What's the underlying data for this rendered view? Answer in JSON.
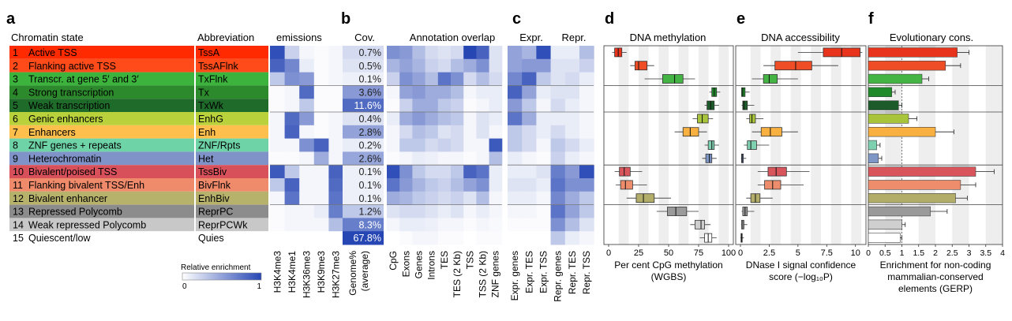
{
  "panel_letters": [
    "a",
    "b",
    "c",
    "d",
    "e",
    "f"
  ],
  "headers": {
    "chromatin_state": "Chromatin state",
    "abbreviation": "Abbreviation",
    "emissions": "emissions",
    "cov": "Cov.",
    "annotation_overlap": "Annotation overlap",
    "expr": "Expr.",
    "repr": "Repr.",
    "dna_methylation": "DNA methylation",
    "dna_accessibility": "DNA accessibility",
    "evolutionary_cons": "Evolutionary cons."
  },
  "states": [
    {
      "num": "1",
      "name": "Active TSS",
      "abbr": "TssA",
      "color": "#ff2a00",
      "box_color": "#e8341c"
    },
    {
      "num": "2",
      "name": "Flanking active TSS",
      "abbr": "TssAFlnk",
      "color": "#ff4b1a",
      "box_color": "#ee4d26"
    },
    {
      "num": "3",
      "name": "Transcr. at gene 5′ and 3′",
      "abbr": "TxFlnk",
      "color": "#3cb33c",
      "box_color": "#44b544"
    },
    {
      "num": "4",
      "name": "Strong transcription",
      "abbr": "Tx",
      "color": "#2c8a2c",
      "box_color": "#1f8a2a"
    },
    {
      "num": "5",
      "name": "Weak transcription",
      "abbr": "TxWk",
      "color": "#1f6b2a",
      "box_color": "#1d5c2a"
    },
    {
      "num": "6",
      "name": "Genic enhancers",
      "abbr": "EnhG",
      "color": "#b9d23c",
      "box_color": "#a8c43a"
    },
    {
      "num": "7",
      "name": "Enhancers",
      "abbr": "Enh",
      "color": "#ffbf4d",
      "box_color": "#f8b040"
    },
    {
      "num": "8",
      "name": "ZNF genes + repeats",
      "abbr": "ZNF/Rpts",
      "color": "#6fd3a8",
      "box_color": "#7fd0b0"
    },
    {
      "num": "9",
      "name": "Heterochromatin",
      "abbr": "Het",
      "color": "#7f93c8",
      "box_color": "#7e97c6"
    },
    {
      "num": "10",
      "name": "Bivalent/poised TSS",
      "abbr": "TssBiv",
      "color": "#d8505a",
      "box_color": "#d9555c"
    },
    {
      "num": "11",
      "name": "Flanking bivalent TSS/Enh",
      "abbr": "BivFlnk",
      "color": "#ef8a6a",
      "box_color": "#ee8d6c"
    },
    {
      "num": "12",
      "name": "Bivalent enhancer",
      "abbr": "EnhBiv",
      "color": "#b7b26b",
      "box_color": "#b3ad6a"
    },
    {
      "num": "13",
      "name": "Repressed Polycomb",
      "abbr": "ReprPC",
      "color": "#8c8c8c",
      "box_color": "#9a9a9a"
    },
    {
      "num": "14",
      "name": "Weak repressed Polycomb",
      "abbr": "ReprPCWk",
      "color": "#c8c8c8",
      "box_color": "#cfcfcf"
    },
    {
      "num": "15",
      "name": "Quiescent/low",
      "abbr": "Quies",
      "color": "#ffffff",
      "box_color": "#ffffff"
    }
  ],
  "chart_data": [
    {
      "type": "heatmap",
      "panel": "a",
      "title": "emissions",
      "columns": [
        "H3K4me3",
        "H3K4me1",
        "H3K36me3",
        "H3K9me3",
        "H3K27me3"
      ],
      "values": [
        [
          0.95,
          0.25,
          0.05,
          0.02,
          0.05
        ],
        [
          0.85,
          0.65,
          0.1,
          0.02,
          0.05
        ],
        [
          0.3,
          0.6,
          0.55,
          0.02,
          0.05
        ],
        [
          0.02,
          0.05,
          0.8,
          0.02,
          0.02
        ],
        [
          0.02,
          0.05,
          0.3,
          0.02,
          0.02
        ],
        [
          0.05,
          0.8,
          0.55,
          0.02,
          0.05
        ],
        [
          0.05,
          0.85,
          0.05,
          0.02,
          0.05
        ],
        [
          0.05,
          0.05,
          0.6,
          0.85,
          0.05
        ],
        [
          0.02,
          0.02,
          0.05,
          0.45,
          0.05
        ],
        [
          0.9,
          0.3,
          0.05,
          0.05,
          0.85
        ],
        [
          0.3,
          0.85,
          0.05,
          0.05,
          0.8
        ],
        [
          0.05,
          0.75,
          0.05,
          0.05,
          0.75
        ],
        [
          0.02,
          0.05,
          0.05,
          0.1,
          0.7
        ],
        [
          0.02,
          0.05,
          0.05,
          0.05,
          0.35
        ],
        [
          0.0,
          0.0,
          0.0,
          0.0,
          0.0
        ]
      ]
    },
    {
      "type": "table",
      "panel": "b",
      "title": "Cov.",
      "columns": [
        "Genome% (average)"
      ],
      "values": [
        "0.7%",
        "0.5%",
        "0.1%",
        "3.6%",
        "11.6%",
        "0.4%",
        "2.8%",
        "0.2%",
        "2.6%",
        "0.1%",
        "0.1%",
        "0.1%",
        "1.2%",
        "8.3%",
        "67.8%"
      ],
      "intensity": [
        0.2,
        0.15,
        0.08,
        0.55,
        0.8,
        0.15,
        0.5,
        0.1,
        0.48,
        0.08,
        0.08,
        0.08,
        0.3,
        0.7,
        1.0
      ]
    },
    {
      "type": "heatmap",
      "panel": "b",
      "title": "Annotation overlap",
      "columns": [
        "CpG",
        "Exons",
        "Genes",
        "Introns",
        "TES",
        "TES (2 Kb)",
        "TSS",
        "TSS (2 Kb)",
        "ZNF genes"
      ],
      "values": [
        [
          0.6,
          0.55,
          0.35,
          0.2,
          0.15,
          0.2,
          1.0,
          0.85,
          0.15
        ],
        [
          0.4,
          0.5,
          0.4,
          0.25,
          0.2,
          0.35,
          0.45,
          0.6,
          0.15
        ],
        [
          0.25,
          0.6,
          0.5,
          0.35,
          0.75,
          0.6,
          0.2,
          0.35,
          0.2
        ],
        [
          0.05,
          0.5,
          0.55,
          0.45,
          0.45,
          0.35,
          0.05,
          0.1,
          0.1
        ],
        [
          0.02,
          0.25,
          0.45,
          0.45,
          0.3,
          0.25,
          0.02,
          0.05,
          0.1
        ],
        [
          0.1,
          0.45,
          0.55,
          0.45,
          0.35,
          0.3,
          0.05,
          0.15,
          0.1
        ],
        [
          0.05,
          0.2,
          0.35,
          0.3,
          0.15,
          0.2,
          0.05,
          0.15,
          0.05
        ],
        [
          0.05,
          0.3,
          0.3,
          0.2,
          0.25,
          0.2,
          0.05,
          0.05,
          0.9
        ],
        [
          0.02,
          0.05,
          0.1,
          0.08,
          0.05,
          0.05,
          0.02,
          0.05,
          0.35
        ],
        [
          0.95,
          0.6,
          0.3,
          0.2,
          0.2,
          0.3,
          0.85,
          0.75,
          0.1
        ],
        [
          0.75,
          0.55,
          0.4,
          0.3,
          0.25,
          0.35,
          0.5,
          0.6,
          0.1
        ],
        [
          0.45,
          0.4,
          0.3,
          0.25,
          0.2,
          0.25,
          0.15,
          0.35,
          0.05
        ],
        [
          0.15,
          0.2,
          0.2,
          0.15,
          0.1,
          0.15,
          0.05,
          0.1,
          0.05
        ],
        [
          0.05,
          0.1,
          0.1,
          0.08,
          0.05,
          0.05,
          0.02,
          0.05,
          0.03
        ],
        [
          0.0,
          0.02,
          0.05,
          0.05,
          0.02,
          0.02,
          0.0,
          0.02,
          0.02
        ]
      ]
    },
    {
      "type": "heatmap",
      "panel": "c",
      "title": "Expr. / Repr.",
      "columns": [
        "Expr. genes",
        "Expr. TES",
        "Expr. TSS",
        "Repr. genes",
        "Repr. TES",
        "Repr. TSS"
      ],
      "values": [
        [
          0.5,
          0.4,
          0.95,
          0.1,
          0.1,
          0.35
        ],
        [
          0.5,
          0.55,
          0.55,
          0.15,
          0.15,
          0.25
        ],
        [
          0.65,
          0.85,
          0.3,
          0.15,
          0.2,
          0.1
        ],
        [
          0.85,
          0.5,
          0.1,
          0.15,
          0.15,
          0.05
        ],
        [
          0.55,
          0.3,
          0.05,
          0.2,
          0.1,
          0.05
        ],
        [
          0.75,
          0.45,
          0.1,
          0.1,
          0.1,
          0.05
        ],
        [
          0.3,
          0.2,
          0.1,
          0.2,
          0.1,
          0.05
        ],
        [
          0.3,
          0.2,
          0.05,
          0.3,
          0.2,
          0.1
        ],
        [
          0.1,
          0.05,
          0.02,
          0.25,
          0.1,
          0.05
        ],
        [
          0.1,
          0.1,
          0.15,
          0.7,
          0.55,
          0.95
        ],
        [
          0.15,
          0.15,
          0.1,
          0.75,
          0.6,
          0.6
        ],
        [
          0.1,
          0.1,
          0.05,
          0.65,
          0.45,
          0.3
        ],
        [
          0.05,
          0.05,
          0.02,
          0.75,
          0.5,
          0.3
        ],
        [
          0.02,
          0.02,
          0.02,
          0.6,
          0.35,
          0.15
        ],
        [
          0.0,
          0.0,
          0.0,
          0.3,
          0.1,
          0.05
        ]
      ],
      "legend_title": "Relative enrichment",
      "legend_min": "0",
      "legend_max": "1"
    },
    {
      "type": "boxplot",
      "panel": "d",
      "title": "DNA methylation",
      "xlabel_line1": "Per cent CpG methylation",
      "xlabel_line2": "(WGBS)",
      "xlim": [
        0,
        100
      ],
      "xticks": [
        "0",
        "25",
        "50",
        "75",
        "100"
      ],
      "boxes": [
        [
          3,
          5,
          8,
          11,
          15
        ],
        [
          18,
          22,
          25,
          32,
          38
        ],
        [
          30,
          45,
          55,
          62,
          72
        ],
        [
          84,
          86,
          88,
          90,
          93
        ],
        [
          80,
          82,
          85,
          88,
          92
        ],
        [
          70,
          74,
          78,
          83,
          87
        ],
        [
          55,
          62,
          68,
          75,
          82
        ],
        [
          80,
          83,
          86,
          88,
          92
        ],
        [
          78,
          81,
          84,
          86,
          90
        ],
        [
          5,
          9,
          13,
          18,
          28
        ],
        [
          6,
          10,
          14,
          20,
          32
        ],
        [
          15,
          23,
          29,
          38,
          52
        ],
        [
          40,
          49,
          56,
          65,
          75
        ],
        [
          68,
          72,
          77,
          80,
          85
        ],
        [
          76,
          80,
          83,
          86,
          90
        ]
      ]
    },
    {
      "type": "boxplot",
      "panel": "e",
      "title": "DNA accessibility",
      "xlabel_line1": "DNase I signal confidence",
      "xlabel_line2": "score (−log₁₀P)",
      "xlim": [
        0,
        10.5
      ],
      "xticks": [
        "0",
        "2.5",
        "5",
        "7.5",
        "10"
      ],
      "boxes": [
        [
          5,
          7.2,
          8.8,
          10.4,
          10.6
        ],
        [
          2,
          3,
          4.8,
          6.2,
          8.5
        ],
        [
          1,
          2,
          2.5,
          3.2,
          5
        ],
        [
          0.1,
          0.1,
          0.2,
          0.4,
          0.8
        ],
        [
          0.1,
          0.2,
          0.3,
          0.6,
          1.2
        ],
        [
          0.5,
          0.8,
          1,
          1.3,
          2
        ],
        [
          1,
          1.8,
          2.6,
          3.6,
          5
        ],
        [
          0.3,
          0.6,
          0.9,
          1.4,
          2.5
        ],
        [
          0.05,
          0.1,
          0.15,
          0.25,
          0.5
        ],
        [
          1.5,
          2.4,
          3.1,
          4,
          6
        ],
        [
          1.5,
          2.1,
          2.8,
          3.5,
          5.5
        ],
        [
          0.5,
          0.9,
          1.3,
          1.7,
          2.8
        ],
        [
          0.1,
          0.2,
          0.4,
          0.6,
          1.2
        ],
        [
          0.05,
          0.1,
          0.2,
          0.3,
          0.6
        ],
        [
          0.0,
          0.05,
          0.1,
          0.15,
          0.3
        ]
      ]
    },
    {
      "type": "bar",
      "panel": "f",
      "title": "Evolutionary cons.",
      "xlabel_line1": "Enrichment for non-coding",
      "xlabel_line2": "mammalian-conserved",
      "xlabel_line3": "elements (GERP)",
      "xlim": [
        0,
        4
      ],
      "xticks": [
        "0",
        "0.5",
        "1",
        "1.5",
        "2",
        "2.5",
        "3",
        "3.5",
        "4"
      ],
      "values": [
        2.65,
        2.3,
        1.6,
        0.7,
        0.9,
        1.2,
        2.0,
        0.25,
        0.3,
        3.2,
        2.75,
        2.6,
        1.85,
        1.0,
        0.95
      ],
      "errors": [
        0.35,
        0.45,
        0.2,
        0.1,
        0.1,
        0.25,
        0.55,
        0.1,
        0.1,
        0.55,
        0.45,
        0.35,
        0.5,
        0.1,
        0.05
      ]
    }
  ]
}
